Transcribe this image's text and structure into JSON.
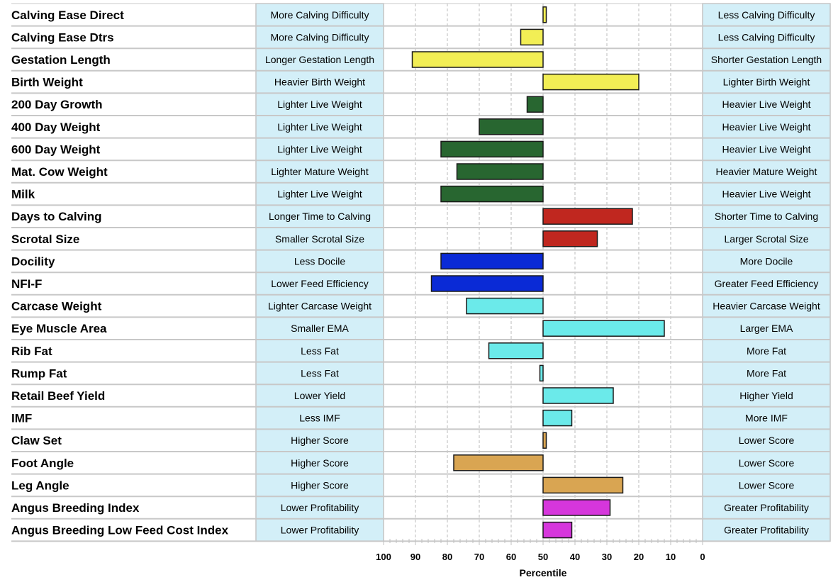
{
  "chart_data": {
    "type": "bar",
    "orientation": "horizontal",
    "xlabel": "Percentile",
    "xlim": [
      100,
      0
    ],
    "x_reversed": true,
    "baseline": 50,
    "x_ticks": [
      100,
      90,
      80,
      70,
      60,
      50,
      40,
      30,
      20,
      10,
      0
    ],
    "grid": "vertical dashed",
    "categories": [
      {
        "trait": "Calving Ease Direct",
        "low": "More Calving Difficulty",
        "high": "Less Calving Difficulty",
        "value": 49,
        "color": "#f2ee55"
      },
      {
        "trait": "Calving Ease Dtrs",
        "low": "More Calving Difficulty",
        "high": "Less Calving Difficulty",
        "value": 57,
        "color": "#f2ee55"
      },
      {
        "trait": "Gestation Length",
        "low": "Longer Gestation Length",
        "high": "Shorter Gestation Length",
        "value": 91,
        "color": "#f2ee55"
      },
      {
        "trait": "Birth Weight",
        "low": "Heavier Birth Weight",
        "high": "Lighter Birth Weight",
        "value": 20,
        "color": "#f2ee55"
      },
      {
        "trait": "200 Day Growth",
        "low": "Lighter Live Weight",
        "high": "Heavier Live Weight",
        "value": 55,
        "color": "#286630"
      },
      {
        "trait": "400 Day Weight",
        "low": "Lighter Live Weight",
        "high": "Heavier Live Weight",
        "value": 70,
        "color": "#286630"
      },
      {
        "trait": "600 Day Weight",
        "low": "Lighter Live Weight",
        "high": "Heavier Live Weight",
        "value": 82,
        "color": "#286630"
      },
      {
        "trait": "Mat. Cow Weight",
        "low": "Lighter Mature Weight",
        "high": "Heavier Mature Weight",
        "value": 77,
        "color": "#286630"
      },
      {
        "trait": "Milk",
        "low": "Lighter Live Weight",
        "high": "Heavier Live Weight",
        "value": 82,
        "color": "#286630"
      },
      {
        "trait": "Days to Calving",
        "low": "Longer Time to Calving",
        "high": "Shorter Time to Calving",
        "value": 22,
        "color": "#c0271f"
      },
      {
        "trait": "Scrotal Size",
        "low": "Smaller Scrotal Size",
        "high": "Larger Scrotal Size",
        "value": 33,
        "color": "#c0271f"
      },
      {
        "trait": "Docility",
        "low": "Less Docile",
        "high": "More Docile",
        "value": 82,
        "color": "#0a2ad6"
      },
      {
        "trait": "NFI-F",
        "low": "Lower Feed Efficiency",
        "high": "Greater Feed Efficiency",
        "value": 85,
        "color": "#0a2ad6"
      },
      {
        "trait": "Carcase Weight",
        "low": "Lighter Carcase Weight",
        "high": "Heavier Carcase Weight",
        "value": 74,
        "color": "#6beaea"
      },
      {
        "trait": "Eye Muscle Area",
        "low": "Smaller EMA",
        "high": "Larger EMA",
        "value": 12,
        "color": "#6beaea"
      },
      {
        "trait": "Rib Fat",
        "low": "Less Fat",
        "high": "More Fat",
        "value": 67,
        "color": "#6beaea"
      },
      {
        "trait": "Rump Fat",
        "low": "Less Fat",
        "high": "More Fat",
        "value": 51,
        "color": "#6beaea"
      },
      {
        "trait": "Retail Beef Yield",
        "low": "Lower Yield",
        "high": "Higher Yield",
        "value": 28,
        "color": "#6beaea"
      },
      {
        "trait": "IMF",
        "low": "Less IMF",
        "high": "More IMF",
        "value": 41,
        "color": "#6beaea"
      },
      {
        "trait": "Claw Set",
        "low": "Higher Score",
        "high": "Lower Score",
        "value": 49,
        "color": "#d9a552"
      },
      {
        "trait": "Foot Angle",
        "low": "Higher Score",
        "high": "Lower Score",
        "value": 78,
        "color": "#d9a552"
      },
      {
        "trait": "Leg Angle",
        "low": "Higher Score",
        "high": "Lower Score",
        "value": 25,
        "color": "#d9a552"
      },
      {
        "trait": "Angus Breeding Index",
        "low": "Lower Profitability",
        "high": "Greater Profitability",
        "value": 29,
        "color": "#d636dc"
      },
      {
        "trait": "Angus Breeding Low Feed Cost Index",
        "low": "Lower Profitability",
        "high": "Greater Profitability",
        "value": 41,
        "color": "#d636dc"
      }
    ],
    "colors": {
      "label_box_fill": "#d3eff8",
      "label_box_stroke": "#c4c4c4",
      "row_line": "#c8c8c8",
      "grid": "#bbbbbb",
      "bar_stroke": "#1a1a1a"
    }
  }
}
